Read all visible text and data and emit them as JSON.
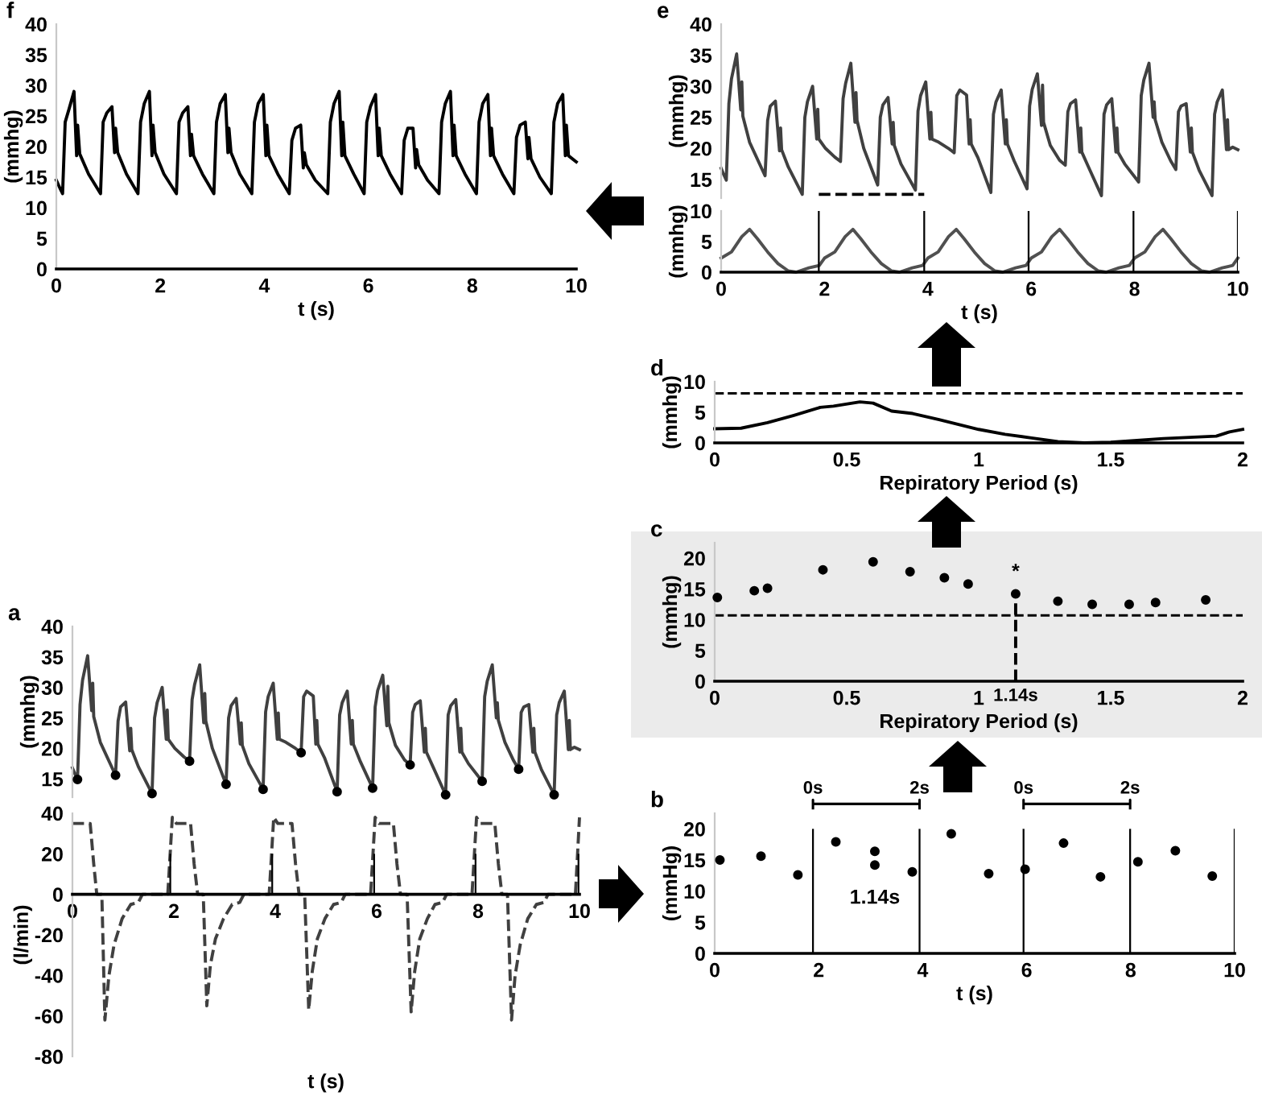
{
  "chart_data": [
    {
      "type": "line",
      "title": "f",
      "xlabel": "t (s)",
      "ylabel": "(mmhg)",
      "xlim": [
        0,
        10
      ],
      "ylim": [
        0,
        40
      ],
      "xticks": [
        0,
        2,
        4,
        6,
        8,
        10
      ],
      "yticks": [
        0,
        5,
        10,
        15,
        20,
        25,
        30,
        35,
        40
      ],
      "series": [
        {
          "color": "#000000",
          "x": [
            0,
            0.08,
            0.12,
            0.17,
            0.24,
            0.34,
            0.39,
            0.41,
            0.45,
            0.62,
            0.85,
            0.9,
            0.97,
            1.07,
            1.12,
            1.14,
            1.18,
            1.35,
            1.57,
            1.62,
            1.69,
            1.79,
            1.84,
            1.86,
            1.9,
            2.07,
            2.31,
            2.36,
            2.43,
            2.53,
            2.58,
            2.6,
            2.64,
            2.81,
            3.03,
            3.08,
            3.15,
            3.25,
            3.3,
            3.32,
            3.36,
            3.53,
            3.76,
            3.81,
            3.88,
            3.98,
            4.03,
            4.05,
            4.09,
            4.26,
            4.48,
            4.53,
            4.6,
            4.7,
            4.75,
            4.77,
            4.81,
            4.98,
            5.22,
            5.27,
            5.34,
            5.44,
            5.49,
            5.51,
            5.55,
            5.72,
            5.92,
            5.97,
            6.04,
            6.14,
            6.19,
            6.21,
            6.25,
            6.42,
            6.64,
            6.69,
            6.76,
            6.86,
            6.91,
            6.93,
            6.97,
            7.14,
            7.36,
            7.41,
            7.48,
            7.58,
            7.63,
            7.65,
            7.69,
            7.86,
            8.08,
            8.13,
            8.2,
            8.3,
            8.35,
            8.37,
            8.41,
            8.58,
            8.8,
            8.85,
            8.92,
            9.02,
            9.07,
            9.09,
            9.13,
            9.3,
            9.52,
            9.57,
            9.64,
            9.74,
            9.79,
            9.81,
            9.85,
            10.0
          ],
          "values": [
            14.5,
            13,
            12.3,
            24,
            26,
            29,
            18.5,
            23.5,
            18.8,
            15.5,
            12.3,
            24,
            25.5,
            26.5,
            19,
            23,
            19,
            15.5,
            12.3,
            24,
            27,
            29,
            18.5,
            23.5,
            19,
            15.5,
            12.3,
            24,
            25.5,
            26.5,
            18.5,
            22,
            18.5,
            15.5,
            12.3,
            24,
            27,
            28.5,
            19,
            23,
            19,
            15.5,
            12.3,
            24,
            27,
            28.5,
            18.5,
            23.5,
            18.5,
            15.5,
            12.3,
            21,
            23,
            23.5,
            16.5,
            19,
            17,
            14.5,
            12.3,
            24,
            27,
            29,
            18.5,
            24,
            18.5,
            15.5,
            12.3,
            24,
            26.5,
            28.5,
            18.5,
            23,
            18.5,
            15.5,
            12.3,
            21,
            23,
            23,
            16.5,
            19.5,
            17,
            14.5,
            12.3,
            24,
            27,
            29,
            18.5,
            23.5,
            18.5,
            15.5,
            12.3,
            24,
            27,
            28.5,
            18.5,
            23,
            18.5,
            15.5,
            12.3,
            21.5,
            23.5,
            24,
            18,
            21.5,
            18,
            15,
            12.3,
            24,
            27,
            28.5,
            18.5,
            23.5,
            18.5,
            17.5
          ]
        }
      ]
    },
    {
      "type": "line",
      "title": "e",
      "ylabel": "(mmhg)",
      "xlim": [
        0,
        10
      ],
      "ylim": [
        12,
        40
      ],
      "xticks": [
        0,
        2,
        4,
        6,
        8,
        10
      ],
      "yticks": [
        15,
        20,
        25,
        30,
        35,
        40
      ],
      "tick_labels": "y",
      "series": [
        {
          "color": "#404040",
          "x": [
            0,
            0.05,
            0.1,
            0.15,
            0.2,
            0.3,
            0.38,
            0.4,
            0.42,
            0.55,
            0.85,
            0.9,
            0.95,
            1.05,
            1.13,
            1.15,
            1.17,
            1.3,
            1.57,
            1.62,
            1.67,
            1.77,
            1.85,
            1.87,
            1.89,
            2.02,
            2.2,
            2.31,
            2.36,
            2.41,
            2.51,
            2.59,
            2.61,
            2.63,
            2.76,
            3.03,
            3.08,
            3.13,
            3.23,
            3.31,
            3.33,
            3.35,
            3.48,
            3.76,
            3.81,
            3.86,
            3.96,
            4.04,
            4.06,
            4.08,
            4.21,
            4.4,
            4.51,
            4.56,
            4.62,
            4.75,
            4.8,
            4.82,
            4.84,
            4.97,
            5.22,
            5.27,
            5.32,
            5.42,
            5.5,
            5.52,
            5.54,
            5.67,
            5.92,
            5.97,
            6.02,
            6.12,
            6.2,
            6.22,
            6.24,
            6.37,
            6.55,
            6.66,
            6.71,
            6.76,
            6.86,
            6.94,
            6.96,
            6.98,
            7.11,
            7.36,
            7.41,
            7.46,
            7.56,
            7.64,
            7.66,
            7.68,
            7.81,
            8.08,
            8.13,
            8.18,
            8.28,
            8.36,
            8.38,
            8.4,
            8.53,
            8.7,
            8.8,
            8.85,
            8.9,
            9.0,
            9.08,
            9.1,
            9.12,
            9.25,
            9.5,
            9.55,
            9.6,
            9.7,
            9.78,
            9.8,
            9.82,
            9.9,
            10.0
          ],
          "values": [
            16.8,
            15.8,
            14.9,
            27.2,
            31.2,
            35.2,
            26.2,
            30.7,
            25.2,
            21,
            15.6,
            24.5,
            26.8,
            27.6,
            19.6,
            23.3,
            19.8,
            17,
            12.6,
            25,
            27.5,
            30,
            21.5,
            26.3,
            21.5,
            20,
            18.6,
            17.9,
            28,
            30.5,
            33.7,
            24.2,
            29,
            24.5,
            20,
            14.1,
            25,
            27,
            28.2,
            20.7,
            24.2,
            20.5,
            17.5,
            13.3,
            26,
            28.5,
            30.7,
            21.5,
            25.8,
            21.5,
            21,
            20,
            19.3,
            28.5,
            29.4,
            28.6,
            20.7,
            24.6,
            20.7,
            18.5,
            12.9,
            25.5,
            27.5,
            29.4,
            20.7,
            24.6,
            20.7,
            18,
            13.5,
            26.8,
            29.5,
            32,
            23.7,
            30.2,
            24.2,
            20.5,
            18.1,
            17.3,
            25.9,
            27.2,
            27.8,
            19.4,
            23.3,
            19.4,
            17,
            12.4,
            25.5,
            27,
            28,
            19.4,
            23.3,
            19.4,
            17.5,
            14.6,
            28.5,
            31,
            33.7,
            25,
            27.5,
            24.6,
            21,
            18,
            16.6,
            25.9,
            26.8,
            27.2,
            19.4,
            23.3,
            19.4,
            16.5,
            12.4,
            25.5,
            27.5,
            29.4,
            19.8,
            24.6,
            19.8,
            20.2,
            19.8
          ]
        },
        {
          "color": "#000000",
          "line_style": "dashed",
          "x": [
            1.89,
            3.93
          ],
          "values": [
            12.6,
            12.6
          ]
        }
      ]
    },
    {
      "type": "line",
      "xlabel": "t (s)",
      "ylabel": "(mmhg)",
      "xlim": [
        0,
        10
      ],
      "ylim": [
        0,
        10
      ],
      "xticks": [
        0,
        2,
        4,
        6,
        8,
        10
      ],
      "yticks": [
        0,
        5,
        10
      ],
      "series": [
        {
          "color": "#505050",
          "x": [
            0,
            0.2,
            0.4,
            0.55,
            0.7,
            0.9,
            1.1,
            1.3,
            1.45,
            1.7,
            1.9,
            2.0,
            2.2,
            2.4,
            2.55,
            2.7,
            2.9,
            3.1,
            3.3,
            3.45,
            3.7,
            3.9,
            4.0,
            4.2,
            4.4,
            4.55,
            4.7,
            4.9,
            5.1,
            5.3,
            5.45,
            5.7,
            5.9,
            6.0,
            6.2,
            6.4,
            6.55,
            6.7,
            6.9,
            7.1,
            7.3,
            7.45,
            7.7,
            7.9,
            8.0,
            8.2,
            8.4,
            8.55,
            8.7,
            8.9,
            9.1,
            9.3,
            9.45,
            9.7,
            9.9,
            10.0
          ],
          "values": [
            2.3,
            3.3,
            5.8,
            7,
            5.5,
            3.3,
            1.4,
            0.2,
            0,
            0.7,
            1.1,
            2.3,
            3.3,
            5.8,
            7,
            5.5,
            3.3,
            1.4,
            0.2,
            0,
            0.7,
            1.1,
            2.3,
            3.3,
            5.8,
            7,
            5.5,
            3.3,
            1.4,
            0.2,
            0,
            0.7,
            1.1,
            2.3,
            3.3,
            5.8,
            7,
            5.5,
            3.3,
            1.4,
            0.2,
            0,
            0.7,
            1.1,
            2.3,
            3.3,
            5.8,
            7,
            5.5,
            3.3,
            1.4,
            0.2,
            0,
            0.7,
            1.1,
            2.3
          ]
        },
        {
          "type": "bar",
          "color": "#000000",
          "x": [
            1.89,
            3.93,
            5.95,
            7.98,
            10.0
          ],
          "values": [
            10,
            10,
            10,
            10,
            10
          ]
        }
      ]
    },
    {
      "type": "line",
      "title": "d",
      "xlabel": "Repiratory Period (s)",
      "ylabel": "(mmhg)",
      "xlim": [
        0,
        2
      ],
      "ylim": [
        0,
        10
      ],
      "xticks": [
        0,
        0.5,
        1,
        1.5,
        2
      ],
      "yticks": [
        0,
        5,
        10
      ],
      "ref_lines": [
        {
          "axis": "y",
          "value": 8.1,
          "line_style": "dashed",
          "color": "#000000"
        }
      ],
      "series": [
        {
          "color": "#000000",
          "x": [
            0,
            0.1,
            0.2,
            0.3,
            0.4,
            0.45,
            0.55,
            0.6,
            0.67,
            0.75,
            0.85,
            1.0,
            1.1,
            1.2,
            1.3,
            1.4,
            1.5,
            1.6,
            1.7,
            1.8,
            1.9,
            1.95,
            2.0
          ],
          "values": [
            2.3,
            2.4,
            3.3,
            4.5,
            5.8,
            6,
            6.7,
            6.5,
            5.2,
            4.8,
            3.8,
            2.2,
            1.4,
            0.8,
            0.2,
            0,
            0.1,
            0.4,
            0.7,
            0.9,
            1.1,
            1.8,
            2.2
          ]
        }
      ]
    },
    {
      "type": "scatter",
      "title": "c",
      "xlabel": "Repiratory Period (s)",
      "ylabel": "(mmhg)",
      "xlim": [
        0,
        2
      ],
      "ylim": [
        0,
        22.5
      ],
      "xticks": [
        0,
        0.5,
        1,
        1.5,
        2
      ],
      "yticks": [
        0,
        5,
        10,
        15,
        20
      ],
      "ref_lines": [
        {
          "axis": "y",
          "value": 10.7,
          "line_style": "dashed",
          "color": "#000000"
        }
      ],
      "annotations": [
        "*",
        "1.14s"
      ],
      "series": [
        {
          "color": "#000000",
          "x": [
            0.01,
            0.15,
            0.2,
            0.41,
            0.6,
            0.74,
            0.87,
            0.96,
            1.14,
            1.3,
            1.43,
            1.57,
            1.67,
            1.86
          ],
          "values": [
            13.6,
            14.7,
            15.1,
            18.1,
            19.4,
            17.8,
            16.8,
            15.8,
            14.2,
            13,
            12.5,
            12.5,
            12.8,
            13.2
          ]
        },
        {
          "type": "line",
          "line_style": "dashed",
          "color": "#000000",
          "x": [
            1.14,
            1.14
          ],
          "values": [
            0,
            14.2
          ]
        }
      ]
    },
    {
      "type": "line",
      "title": "a",
      "ylabel": "(mmhg)",
      "xlim": [
        0,
        10
      ],
      "ylim": [
        12,
        40
      ],
      "xticks": [
        0,
        2,
        4,
        6,
        8,
        10
      ],
      "yticks": [
        15,
        20,
        25,
        30,
        35,
        40
      ],
      "tick_labels": "y",
      "series": [
        {
          "color": "#404040",
          "x": [
            0,
            0.05,
            0.1,
            0.15,
            0.2,
            0.3,
            0.38,
            0.4,
            0.42,
            0.55,
            0.85,
            0.9,
            0.95,
            1.05,
            1.13,
            1.15,
            1.17,
            1.3,
            1.57,
            1.62,
            1.67,
            1.77,
            1.85,
            1.87,
            1.89,
            2.02,
            2.2,
            2.31,
            2.36,
            2.41,
            2.51,
            2.59,
            2.61,
            2.63,
            2.76,
            3.03,
            3.08,
            3.13,
            3.23,
            3.31,
            3.33,
            3.35,
            3.48,
            3.76,
            3.81,
            3.86,
            3.96,
            4.04,
            4.06,
            4.08,
            4.21,
            4.4,
            4.51,
            4.56,
            4.62,
            4.75,
            4.8,
            4.82,
            4.84,
            4.97,
            5.22,
            5.27,
            5.32,
            5.42,
            5.5,
            5.52,
            5.54,
            5.67,
            5.92,
            5.97,
            6.02,
            6.12,
            6.2,
            6.22,
            6.24,
            6.37,
            6.55,
            6.66,
            6.71,
            6.76,
            6.86,
            6.94,
            6.96,
            6.98,
            7.11,
            7.36,
            7.41,
            7.46,
            7.56,
            7.64,
            7.66,
            7.68,
            7.81,
            8.08,
            8.13,
            8.18,
            8.28,
            8.36,
            8.38,
            8.4,
            8.53,
            8.7,
            8.8,
            8.85,
            8.9,
            9.0,
            9.08,
            9.1,
            9.12,
            9.25,
            9.5,
            9.55,
            9.6,
            9.7,
            9.78,
            9.8,
            9.82,
            9.9,
            10.0
          ],
          "values": [
            16.8,
            15.8,
            14.9,
            27.2,
            31.2,
            35.2,
            26.2,
            30.7,
            25.2,
            21,
            15.6,
            24.5,
            26.8,
            27.6,
            19.6,
            23.3,
            19.8,
            17,
            12.6,
            25,
            27.5,
            30,
            21.5,
            26.3,
            21.5,
            20,
            18.6,
            17.9,
            28,
            30.5,
            33.7,
            24.2,
            29,
            24.5,
            20,
            14.1,
            25,
            27,
            28.2,
            20.7,
            24.2,
            20.5,
            17.5,
            13.3,
            26,
            28.5,
            30.7,
            21.5,
            25.8,
            21.5,
            21,
            20,
            19.3,
            28.5,
            29.4,
            28.6,
            20.7,
            24.6,
            20.7,
            18.5,
            12.9,
            25.5,
            27.5,
            29.4,
            20.7,
            24.6,
            20.7,
            18,
            13.5,
            26.8,
            29.5,
            32,
            23.7,
            30.2,
            24.2,
            20.5,
            18.1,
            17.3,
            25.9,
            27.2,
            27.8,
            19.4,
            23.3,
            19.4,
            17,
            12.4,
            25.5,
            27,
            28,
            19.4,
            23.3,
            19.4,
            17.5,
            14.6,
            28.5,
            31,
            33.7,
            25,
            27.5,
            24.6,
            21,
            18,
            16.6,
            25.9,
            26.8,
            27.2,
            19.4,
            23.3,
            19.4,
            16.5,
            12.4,
            25.5,
            27.5,
            29.4,
            19.8,
            24.6,
            19.8,
            20.2,
            19.8
          ]
        },
        {
          "type": "scatter",
          "color": "#000000",
          "x": [
            0.1,
            0.85,
            1.57,
            2.31,
            3.03,
            3.76,
            4.51,
            5.22,
            5.92,
            6.66,
            7.36,
            8.08,
            8.8,
            9.5
          ],
          "values": [
            14.9,
            15.6,
            12.6,
            17.9,
            14.1,
            13.3,
            19.3,
            12.9,
            13.5,
            17.3,
            12.4,
            14.6,
            16.6,
            12.4
          ]
        }
      ]
    },
    {
      "type": "line",
      "xlabel": "t (s)",
      "ylabel": "(l/min)",
      "xlim": [
        0,
        10
      ],
      "ylim": [
        -80,
        40
      ],
      "xticks": [
        0,
        2,
        4,
        6,
        8,
        10
      ],
      "yticks": [
        -80,
        -60,
        -40,
        -20,
        0,
        20,
        40
      ],
      "series": [
        {
          "color": "#404040",
          "line_style": "dashed",
          "x": [
            0,
            0.35,
            0.42,
            0.48,
            0.58,
            0.64,
            0.72,
            0.82,
            0.98,
            1.15,
            1.3,
            1.38,
            1.88,
            1.97,
            2.05,
            2.33,
            2.4,
            2.47,
            2.58,
            2.65,
            2.72,
            2.82,
            2.98,
            3.15,
            3.3,
            3.38,
            3.88,
            3.97,
            4.05,
            4.33,
            4.4,
            4.47,
            4.58,
            4.66,
            4.73,
            4.83,
            4.98,
            5.15,
            5.3,
            5.38,
            5.88,
            5.97,
            6.05,
            6.33,
            6.4,
            6.47,
            6.6,
            6.68,
            6.75,
            6.85,
            7.0,
            7.15,
            7.3,
            7.38,
            7.88,
            7.97,
            8.05,
            8.33,
            8.4,
            8.47,
            8.58,
            8.66,
            8.73,
            8.83,
            8.98,
            9.15,
            9.3,
            9.38,
            9.92,
            10.0
          ],
          "values": [
            35,
            35,
            15,
            0,
            0,
            -62,
            -40,
            -25,
            -12,
            -5,
            -4,
            0,
            0,
            38,
            35,
            35,
            15,
            0,
            0,
            -55,
            -35,
            -22,
            -12,
            -5,
            -4,
            0,
            0,
            38,
            35,
            35,
            15,
            0,
            0,
            -57,
            -38,
            -22,
            -12,
            -5,
            -4,
            0,
            0,
            38,
            35,
            35,
            15,
            0,
            0,
            -58,
            -38,
            -22,
            -12,
            -5,
            -4,
            0,
            0,
            38,
            35,
            35,
            15,
            0,
            0,
            -62,
            -40,
            -25,
            -12,
            -5,
            -4,
            0,
            0,
            38
          ]
        },
        {
          "type": "bar",
          "color": "#000000",
          "x": [
            1.93,
            3.94,
            5.95,
            7.95,
            9.98
          ],
          "values": [
            20,
            20,
            20,
            20,
            20
          ]
        }
      ]
    },
    {
      "type": "scatter",
      "title": "b",
      "xlabel": "t (s)",
      "ylabel": "(mmHg)",
      "xlim": [
        0,
        10
      ],
      "ylim": [
        0,
        22.5
      ],
      "xticks": [
        0,
        2,
        4,
        6,
        8,
        10
      ],
      "yticks": [
        0,
        5,
        10,
        15,
        20
      ],
      "annotations": [
        "1.14s",
        "0s",
        "2s",
        "0s",
        "2s"
      ],
      "series": [
        {
          "color": "#000000",
          "x": [
            0.1,
            0.89,
            1.6,
            2.33,
            3.08,
            3.08,
            3.8,
            4.55,
            5.27,
            5.97,
            6.71,
            7.42,
            8.14,
            8.86,
            9.57
          ],
          "values": [
            15,
            15.6,
            12.6,
            17.9,
            16.4,
            14.2,
            13.1,
            19.2,
            12.8,
            13.5,
            17.7,
            12.3,
            14.7,
            16.5,
            12.4
          ]
        },
        {
          "type": "bar",
          "color": "#000000",
          "x": [
            1.89,
            3.94,
            5.94,
            7.99,
            10.0
          ],
          "values": [
            20,
            20,
            20,
            20,
            20
          ]
        }
      ]
    }
  ]
}
